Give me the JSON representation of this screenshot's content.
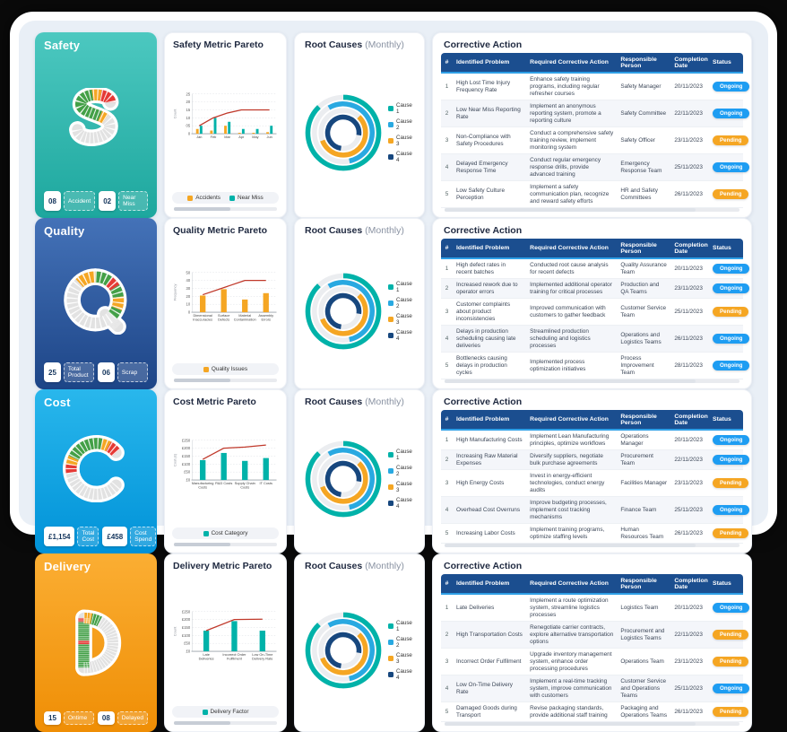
{
  "colors": {
    "teal": "#00b2a9",
    "light_blue": "#29a9e1",
    "orange": "#f5a623",
    "navy": "#17477e",
    "line_red": "#c0392b",
    "status_ongoing": "#1e9df2",
    "status_pending": "#f5a623",
    "table_header": "#1b4e8f",
    "tile_safety_from": "#4cc8c0",
    "tile_safety_to": "#1da79e",
    "tile_quality_from": "#4472b8",
    "tile_quality_to": "#1d4587",
    "tile_cost_from": "#29b7ec",
    "tile_cost_to": "#0092d8",
    "tile_delivery_from": "#fbae33",
    "tile_delivery_to": "#ef8e05"
  },
  "table_headers": [
    "#",
    "Identified Problem",
    "Required Corrective Action",
    "Responsible Person",
    "Completion Date",
    "Status"
  ],
  "chart_data": [
    {
      "id": "safety-pareto",
      "type": "bar",
      "title": "Safety Metric Pareto",
      "ylabel": "Count",
      "ylim": [
        0,
        25
      ],
      "yticks": [
        "0",
        "05",
        "10",
        "15",
        "20",
        "25"
      ],
      "categories": [
        [
          "Jan"
        ],
        [
          "Feb"
        ],
        [
          "Mar"
        ],
        [
          "Apr"
        ],
        [
          "May"
        ],
        [
          "Jun"
        ]
      ],
      "series": [
        {
          "name": "Accidents",
          "color": "#f5a623",
          "values": [
            3,
            2,
            5,
            0.6,
            0.6,
            1
          ]
        },
        {
          "name": "Near Miss",
          "color": "#00b2a9",
          "values": [
            5,
            10,
            7.5,
            3,
            3,
            5
          ]
        }
      ],
      "line": {
        "name": "Cumulative",
        "color": "#c0392b",
        "values": [
          5,
          10,
          13,
          15,
          15,
          15
        ]
      }
    },
    {
      "id": "quality-pareto",
      "type": "bar",
      "title": "Quality Metric Pareto",
      "ylabel": "Frequency",
      "ylim": [
        0,
        50
      ],
      "yticks": [
        "0",
        "10",
        "20",
        "30",
        "40",
        "50"
      ],
      "categories": [
        [
          "Dimensional",
          "Inaccuracies"
        ],
        [
          "Surface",
          "Defects"
        ],
        [
          "Material",
          "Contamination"
        ],
        [
          "Assembly",
          "Errors"
        ]
      ],
      "series": [
        {
          "name": "Quality Issues",
          "color": "#f5a623",
          "values": [
            21,
            29,
            16,
            24
          ]
        }
      ],
      "line": {
        "name": "Cumulative",
        "color": "#c0392b",
        "values": [
          22,
          31,
          40,
          40
        ]
      }
    },
    {
      "id": "cost-pareto",
      "type": "bar",
      "title": "Cost Metric Pareto",
      "ylabel": "Cost (£)",
      "ylim": [
        0,
        250
      ],
      "yticks": [
        "£0",
        "£50",
        "£100",
        "£150",
        "£200",
        "£250"
      ],
      "categories": [
        [
          "Manufacturing",
          "Costs"
        ],
        [
          "R&D Costs"
        ],
        [
          "Supply Chain",
          "Costs"
        ],
        [
          "IT Costs"
        ]
      ],
      "series": [
        {
          "name": "Cost Category",
          "color": "#00b2a9",
          "values": [
            125,
            170,
            120,
            138
          ]
        }
      ],
      "line": {
        "name": "Cumulative",
        "color": "#c0392b",
        "values": [
          130,
          200,
          207,
          220
        ]
      }
    },
    {
      "id": "delivery-pareto",
      "type": "bar",
      "title": "Delivery Metric Pareto",
      "ylabel": "Count",
      "ylim": [
        0,
        250
      ],
      "yticks": [
        "£0",
        "£50",
        "£100",
        "£150",
        "£200",
        "£250"
      ],
      "categories": [
        [
          "Late",
          "Deliveries"
        ],
        [
          "Incorrect Order",
          "Fulfilment"
        ],
        [
          "Low On-Time",
          "Delivery Rate"
        ]
      ],
      "series": [
        {
          "name": "Delivery Factor",
          "color": "#00b2a9",
          "values": [
            130,
            190,
            130
          ]
        }
      ],
      "line": {
        "name": "Cumulative",
        "color": "#c0392b",
        "values": [
          130,
          200,
          202
        ]
      }
    },
    {
      "id": "safety-root-causes",
      "type": "ring",
      "title": "Root Causes (Monthly)",
      "legend_position": "right",
      "segments": [
        {
          "label": "Cause 1",
          "color": "#00b2a9",
          "value": 88,
          "start": -90
        },
        {
          "label": "Cause 2",
          "color": "#29a9e1",
          "value": 55,
          "start": -120
        },
        {
          "label": "Cause 3",
          "color": "#f5a623",
          "value": 57,
          "start": -45
        },
        {
          "label": "Cause 4",
          "color": "#17477e",
          "value": 75,
          "start": 100
        }
      ]
    },
    {
      "id": "quality-root-causes",
      "type": "ring",
      "title": "Root Causes (Monthly)",
      "legend_position": "right",
      "segments": [
        {
          "label": "Cause 1",
          "color": "#00b2a9",
          "value": 88,
          "start": -90
        },
        {
          "label": "Cause 2",
          "color": "#29a9e1",
          "value": 55,
          "start": -120
        },
        {
          "label": "Cause 3",
          "color": "#f5a623",
          "value": 57,
          "start": -45
        },
        {
          "label": "Cause 4",
          "color": "#17477e",
          "value": 75,
          "start": 100
        }
      ]
    },
    {
      "id": "cost-root-causes",
      "type": "ring",
      "title": "Root Causes (Monthly)",
      "legend_position": "right",
      "segments": [
        {
          "label": "Cause 1",
          "color": "#00b2a9",
          "value": 88,
          "start": -90
        },
        {
          "label": "Cause 2",
          "color": "#29a9e1",
          "value": 55,
          "start": -120
        },
        {
          "label": "Cause 3",
          "color": "#f5a623",
          "value": 57,
          "start": -45
        },
        {
          "label": "Cause 4",
          "color": "#17477e",
          "value": 75,
          "start": 100
        }
      ]
    },
    {
      "id": "delivery-root-causes",
      "type": "ring",
      "title": "Root Causes (Monthly)",
      "legend_position": "right",
      "segments": [
        {
          "label": "Cause 1",
          "color": "#00b2a9",
          "value": 88,
          "start": -90
        },
        {
          "label": "Cause 2",
          "color": "#29a9e1",
          "value": 55,
          "start": -120
        },
        {
          "label": "Cause 3",
          "color": "#f5a623",
          "value": 57,
          "start": -45
        },
        {
          "label": "Cause 4",
          "color": "#17477e",
          "value": 75,
          "start": 100
        }
      ]
    }
  ],
  "rows": [
    {
      "id": "safety",
      "tile": {
        "title": "Safety",
        "letter": "S",
        "badges": [
          {
            "value": "08",
            "label": "Accident"
          },
          {
            "value": "02",
            "label": "Near Miss"
          }
        ]
      },
      "root_title": "Root Causes",
      "root_subtitle": "(Monthly)",
      "table": {
        "title": "Corrective Action",
        "rows": [
          {
            "num": "1",
            "problem": "High Lost Time Injury Frequency Rate",
            "action": "Enhance safety training programs, including regular refresher courses",
            "person": "Safety Manager",
            "date": "20/11/2023",
            "status": "Ongoing"
          },
          {
            "num": "2",
            "problem": "Low Near Miss Reporting Rate",
            "action": "Implement an anonymous reporting system, promote a reporting culture",
            "person": "Safety Committee",
            "date": "22/11/2023",
            "status": "Ongoing"
          },
          {
            "num": "3",
            "problem": "Non-Compliance with Safety Procedures",
            "action": "Conduct a comprehensive safety training review, implement monitoring system",
            "person": "Safety Officer",
            "date": "23/11/2023",
            "status": "Pending"
          },
          {
            "num": "4",
            "problem": "Delayed Emergency Response Time",
            "action": "Conduct regular emergency response drills, provide advanced training",
            "person": "Emergency Response Team",
            "date": "25/11/2023",
            "status": "Ongoing"
          },
          {
            "num": "5",
            "problem": "Low Safety Culture Perception",
            "action": "Implement a safety communication plan, recognize and reward safety efforts",
            "person": "HR and Safety Committees",
            "date": "26/11/2023",
            "status": "Pending"
          }
        ]
      }
    },
    {
      "id": "quality",
      "tile": {
        "title": "Quality",
        "letter": "Q",
        "badges": [
          {
            "value": "25",
            "label": "Total Product"
          },
          {
            "value": "06",
            "label": "Scrap"
          }
        ]
      },
      "root_title": "Root Causes",
      "root_subtitle": "(Monthly)",
      "table": {
        "title": "Corrective Action",
        "rows": [
          {
            "num": "1",
            "problem": "High defect rates in recent batches",
            "action": "Conducted root cause analysis for recent defects",
            "person": "Quality Assurance Team",
            "date": "20/11/2023",
            "status": "Ongoing"
          },
          {
            "num": "2",
            "problem": "Increased rework due to operator errors",
            "action": "Implemented additional operator training for critical processes",
            "person": "Production and QA Teams",
            "date": "23/11/2023",
            "status": "Ongoing"
          },
          {
            "num": "3",
            "problem": "Customer complaints about product inconsistencies",
            "action": "Improved communication with customers to gather feedback",
            "person": "Customer Service Team",
            "date": "25/11/2023",
            "status": "Pending"
          },
          {
            "num": "4",
            "problem": "Delays in production scheduling causing late deliveries",
            "action": "Streamlined production scheduling and logistics processes",
            "person": "Operations and Logistics Teams",
            "date": "26/11/2023",
            "status": "Ongoing"
          },
          {
            "num": "5",
            "problem": "Bottlenecks causing delays in production cycles",
            "action": "Implemented process optimization initiatives",
            "person": "Process Improvement Team",
            "date": "28/11/2023",
            "status": "Ongoing"
          }
        ]
      }
    },
    {
      "id": "cost",
      "tile": {
        "title": "Cost",
        "letter": "C",
        "badges": [
          {
            "value": "£1,154",
            "label": "Total Cost"
          },
          {
            "value": "£458",
            "label": "Cost Spend"
          }
        ]
      },
      "root_title": "Root Causes",
      "root_subtitle": "(Monthly)",
      "table": {
        "title": "Corrective Action",
        "rows": [
          {
            "num": "1",
            "problem": "High Manufacturing Costs",
            "action": "Implement Lean Manufacturing principles, optimize workflows",
            "person": "Operations Manager",
            "date": "20/11/2023",
            "status": "Ongoing"
          },
          {
            "num": "2",
            "problem": "Increasing Raw Material Expenses",
            "action": "Diversify suppliers, negotiate bulk purchase agreements",
            "person": "Procurement Team",
            "date": "22/11/2023",
            "status": "Ongoing"
          },
          {
            "num": "3",
            "problem": "High Energy Costs",
            "action": "Invest in energy-efficient technologies, conduct energy audits",
            "person": "Facilities Manager",
            "date": "23/11/2023",
            "status": "Pending"
          },
          {
            "num": "4",
            "problem": "Overhead Cost Overruns",
            "action": "Improve budgeting processes, implement cost tracking mechanisms",
            "person": "Finance Team",
            "date": "25/11/2023",
            "status": "Ongoing"
          },
          {
            "num": "5",
            "problem": "Increasing Labor Costs",
            "action": "Implement training programs, optimize staffing levels",
            "person": "Human Resources Team",
            "date": "26/11/2023",
            "status": "Pending"
          }
        ]
      }
    },
    {
      "id": "delivery",
      "tile": {
        "title": "Delivery",
        "letter": "D",
        "badges": [
          {
            "value": "15",
            "label": "Ontime"
          },
          {
            "value": "08",
            "label": "Delayed"
          }
        ]
      },
      "root_title": "Root Causes",
      "root_subtitle": "(Monthly)",
      "table": {
        "title": "Corrective Action",
        "rows": [
          {
            "num": "1",
            "problem": "Late Deliveries",
            "action": "Implement a route optimization system, streamline logistics processes",
            "person": "Logistics Team",
            "date": "20/11/2023",
            "status": "Ongoing"
          },
          {
            "num": "2",
            "problem": "High Transportation Costs",
            "action": "Renegotiate carrier contracts, explore alternative transportation options",
            "person": "Procurement and Logistics Teams",
            "date": "22/11/2023",
            "status": "Pending"
          },
          {
            "num": "3",
            "problem": "Incorrect Order Fulfilment",
            "action": "Upgrade inventory management system, enhance order processing procedures",
            "person": "Operations Team",
            "date": "23/11/2023",
            "status": "Pending"
          },
          {
            "num": "4",
            "problem": "Low On-Time Delivery Rate",
            "action": "Implement a real-time tracking system, improve communication with customers",
            "person": "Customer Service and Operations Teams",
            "date": "25/11/2023",
            "status": "Ongoing"
          },
          {
            "num": "5",
            "problem": "Damaged Goods during Transport",
            "action": "Revise packaging standards, provide additional staff training",
            "person": "Packaging and Operations Teams",
            "date": "26/11/2023",
            "status": "Pending"
          }
        ]
      }
    }
  ]
}
